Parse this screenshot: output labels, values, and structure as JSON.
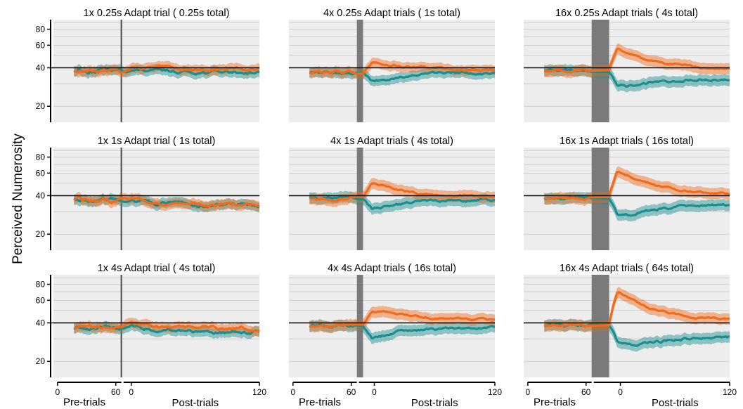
{
  "figure": {
    "ylabel": "Perceived Numerosity",
    "pre_label": "Pre-trials",
    "post_label": "Post-trials"
  },
  "chart_data": {
    "type": "line",
    "ylabel": "Perceived Numerosity",
    "y_scale": "log",
    "ylim": [
      15,
      95
    ],
    "yticks": [
      20,
      40,
      60,
      80
    ],
    "reference_line": 40,
    "grid": true,
    "x_axis": {
      "pre_ticks": [
        0,
        60
      ],
      "post_ticks": [
        0,
        120
      ],
      "pre_label": "Pre-trials",
      "post_label": "Post-trials"
    },
    "series_colors": [
      "#f26a1b",
      "#1a8e8e"
    ],
    "panels": [
      {
        "title": "1x 0.25s Adapt trial (  0.25s total)",
        "adapt_trials": 1,
        "adapt_duration_s": 0.25,
        "pre_mean": 38,
        "orange_peak": 40,
        "orange_end": 39,
        "teal_dip": 38,
        "teal_end": 37,
        "noise": 1.5,
        "band": 0.09
      },
      {
        "title": "4x 0.25s Adapt trials (  1s total)",
        "adapt_trials": 4,
        "adapt_duration_s": 0.25,
        "pre_mean": 37,
        "orange_peak": 45,
        "orange_end": 38,
        "teal_dip": 31,
        "teal_end": 37,
        "noise": 1.2,
        "band": 0.09
      },
      {
        "title": "16x 0.25s Adapt trials (  4s total)",
        "adapt_trials": 16,
        "adapt_duration_s": 0.25,
        "pre_mean": 38,
        "orange_peak": 58,
        "orange_end": 39,
        "teal_dip": 26,
        "teal_end": 33,
        "noise": 1.0,
        "band": 0.1
      },
      {
        "title": "1x 1s Adapt trial (  1s total)",
        "adapt_trials": 1,
        "adapt_duration_s": 1,
        "pre_mean": 37,
        "orange_peak": 37,
        "orange_end": 34,
        "teal_dip": 36,
        "teal_end": 34,
        "noise": 1.6,
        "band": 0.09
      },
      {
        "title": "4x 1s Adapt trials (  4s total)",
        "adapt_trials": 4,
        "adapt_duration_s": 1,
        "pre_mean": 38,
        "orange_peak": 50,
        "orange_end": 39,
        "teal_dip": 31,
        "teal_end": 37,
        "noise": 1.2,
        "band": 0.1
      },
      {
        "title": "16x 1s Adapt trials (  16s total)",
        "adapt_trials": 16,
        "adapt_duration_s": 1,
        "pre_mean": 38,
        "orange_peak": 64,
        "orange_end": 41,
        "teal_dip": 25,
        "teal_end": 34,
        "noise": 1.0,
        "band": 0.1
      },
      {
        "title": "1x 4s Adapt trial (  4s total)",
        "adapt_trials": 1,
        "adapt_duration_s": 4,
        "pre_mean": 37,
        "orange_peak": 39,
        "orange_end": 36,
        "teal_dip": 37,
        "teal_end": 33,
        "noise": 1.5,
        "band": 0.09
      },
      {
        "title": "4x 4s Adapt trials (  16s total)",
        "adapt_trials": 4,
        "adapt_duration_s": 4,
        "pre_mean": 38,
        "orange_peak": 52,
        "orange_end": 42,
        "teal_dip": 30,
        "teal_end": 37,
        "noise": 1.1,
        "band": 0.1
      },
      {
        "title": "16x 4s Adapt trials (  64s total)",
        "adapt_trials": 16,
        "adapt_duration_s": 4,
        "pre_mean": 38,
        "orange_peak": 72,
        "orange_end": 41,
        "teal_dip": 23,
        "teal_end": 31,
        "noise": 1.0,
        "band": 0.1
      }
    ]
  }
}
